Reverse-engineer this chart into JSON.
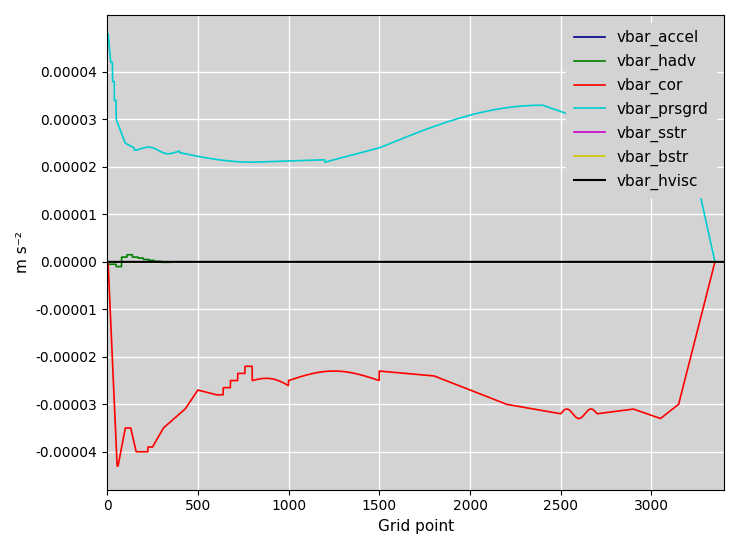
{
  "title": "",
  "xlabel": "Grid point",
  "ylabel": "m s⁻²",
  "xlim": [
    0,
    3400
  ],
  "ylim": [
    -4.8e-05,
    5.2e-05
  ],
  "xticks": [
    0,
    500,
    1000,
    1500,
    2000,
    2500,
    3000
  ],
  "yticks": [
    -4e-05,
    -3e-05,
    -2e-05,
    -1e-05,
    0.0,
    1e-05,
    2e-05,
    3e-05,
    4e-05
  ],
  "background_color": "#d3d3d3",
  "grid_color": "#ffffff",
  "series": {
    "vbar_accel": {
      "color": "#00008b",
      "lw": 1.2
    },
    "vbar_hadv": {
      "color": "#008000",
      "lw": 1.2
    },
    "vbar_cor": {
      "color": "#ff0000",
      "lw": 1.2
    },
    "vbar_prsgrd": {
      "color": "#00ced1",
      "lw": 1.2
    },
    "vbar_sstr": {
      "color": "#cc00cc",
      "lw": 1.2
    },
    "vbar_bstr": {
      "color": "#cccc00",
      "lw": 1.2
    },
    "vbar_hvisc": {
      "color": "#000000",
      "lw": 1.5
    }
  },
  "legend_fontsize": 11,
  "tick_fontsize": 10,
  "label_fontsize": 11
}
